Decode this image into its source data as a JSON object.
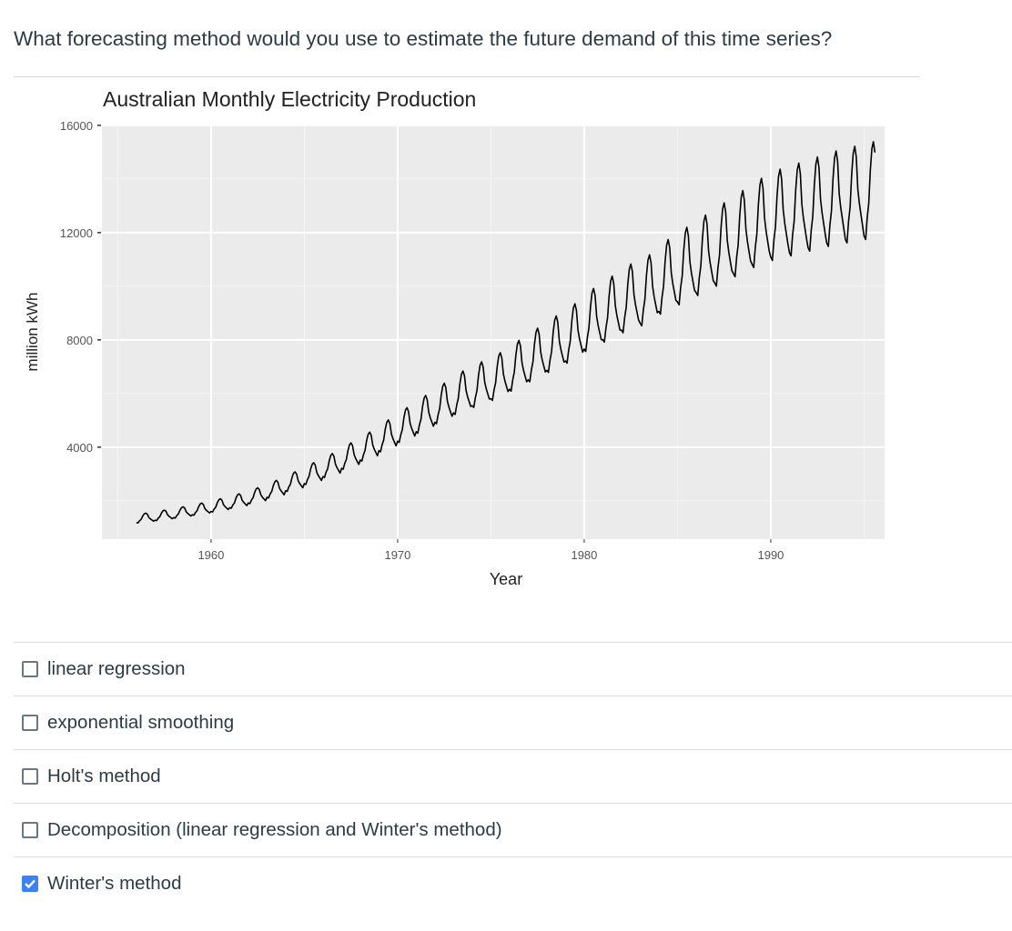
{
  "question": "What forecasting method would you use to estimate the future demand of this time series?",
  "answers": [
    {
      "label": "linear regression",
      "checked": false
    },
    {
      "label": "exponential smoothing",
      "checked": false
    },
    {
      "label": "Holt's method",
      "checked": false
    },
    {
      "label": "Decomposition (linear regression and Winter's method)",
      "checked": false
    },
    {
      "label": "Winter's method",
      "checked": true
    }
  ],
  "colors": {
    "checkbox_checked": "#3b82f6",
    "panel": "#ebebeb",
    "line": "#000000"
  },
  "chart_data": {
    "type": "line",
    "title": "Australian Monthly Electricity Production",
    "xlabel": "Year",
    "ylabel": "million kWh",
    "xticks": [
      "1960",
      "1970",
      "1980",
      "1990"
    ],
    "yticks": [
      "4000",
      "8000",
      "12000",
      "16000"
    ],
    "xlim": [
      1954.15,
      1996.1
    ],
    "ylim": [
      570,
      16030
    ],
    "grid": true,
    "start": "1956-01",
    "frequency": "monthly",
    "values": [
      1188,
      1175,
      1256,
      1310,
      1431,
      1512,
      1539,
      1499,
      1377,
      1323,
      1283,
      1242,
      1276,
      1262,
      1349,
      1407,
      1537,
      1624,
      1653,
      1610,
      1479,
      1421,
      1378,
      1334,
      1373,
      1357,
      1451,
      1513,
      1654,
      1747,
      1778,
      1732,
      1591,
      1529,
      1482,
      1435,
      1478,
      1462,
      1562,
      1630,
      1781,
      1882,
      1915,
      1865,
      1714,
      1646,
      1596,
      1546,
      1602,
      1583,
      1693,
      1765,
      1929,
      2038,
      2075,
      2020,
      1856,
      1784,
      1729,
      1674,
      1742,
      1723,
      1841,
      1921,
      2099,
      2218,
      2257,
      2198,
      2020,
      1940,
      1881,
      1822,
      1918,
      1897,
      2027,
      2115,
      2311,
      2442,
      2485,
      2420,
      2224,
      2136,
      2071,
      2006,
      2130,
      2105,
      2251,
      2347,
      2565,
      2710,
      2759,
      2686,
      2468,
      2372,
      2299,
      2226,
      2376,
      2349,
      2511,
      2619,
      2862,
      3024,
      3078,
      2997,
      2754,
      2646,
      2565,
      2484,
      2640,
      2610,
      2790,
      2910,
      3180,
      3360,
      3420,
      3330,
      3060,
      2940,
      2850,
      2760,
      2904,
      2871,
      3069,
      3201,
      3498,
      3696,
      3762,
      3663,
      3366,
      3234,
      3135,
      3036,
      3212,
      3176,
      3395,
      3541,
      3869,
      4088,
      4161,
      4052,
      3723,
      3577,
      3468,
      3358,
      3520,
      3480,
      3720,
      3880,
      4240,
      4480,
      4560,
      4440,
      4080,
      3920,
      3800,
      3680,
      3872,
      3828,
      4092,
      4268,
      4664,
      4928,
      5016,
      4884,
      4488,
      4312,
      4180,
      4048,
      4224,
      4176,
      4464,
      4656,
      5088,
      5376,
      5472,
      5328,
      4896,
      4704,
      4560,
      4416,
      4576,
      4524,
      4836,
      5044,
      5512,
      5824,
      5928,
      5772,
      5304,
      5096,
      4940,
      4784,
      4928,
      4872,
      5208,
      5432,
      5936,
      6272,
      6384,
      6216,
      5712,
      5488,
      5320,
      5152,
      5280,
      5220,
      5580,
      5820,
      6360,
      6720,
      6840,
      6660,
      6120,
      5880,
      5700,
      5520,
      5544,
      5481,
      5859,
      6111,
      6678,
      7056,
      7182,
      6993,
      6426,
      6174,
      5985,
      5796,
      5808,
      5742,
      6138,
      6402,
      6996,
      7392,
      7524,
      7326,
      6732,
      6468,
      6270,
      6072,
      6160,
      6090,
      6510,
      6790,
      7420,
      7840,
      7980,
      7770,
      7140,
      6860,
      6650,
      6440,
      6512,
      6438,
      6882,
      7178,
      7844,
      8288,
      8436,
      8214,
      7548,
      7252,
      7030,
      6808,
      6864,
      6786,
      7254,
      7566,
      8268,
      8736,
      8892,
      8658,
      7956,
      7644,
      7410,
      7176,
      7216,
      7134,
      7626,
      7954,
      8692,
      9184,
      9348,
      9102,
      8364,
      8036,
      7790,
      7544,
      7656,
      7569,
      8091,
      8439,
      9222,
      9744,
      9918,
      9657,
      8874,
      8526,
      8265,
      8004,
      8008,
      7917,
      8463,
      8827,
      9646,
      10192,
      10374,
      10101,
      9282,
      8918,
      8645,
      8372,
      8360,
      8265,
      8835,
      9215,
      10070,
      10640,
      10830,
      10545,
      9690,
      9310,
      9025,
      8740,
      8624,
      8526,
      9114,
      9506,
      10388,
      10976,
      11172,
      10878,
      9996,
      9604,
      9310,
      9016,
      9064,
      8961,
      9579,
      9991,
      10918,
      11536,
      11742,
      11433,
      10506,
      10094,
      9785,
      9476,
      9416,
      9309,
      9951,
      10379,
      11342,
      11984,
      12198,
      11877,
      10914,
      10486,
      10165,
      9844,
      9768,
      9657,
      10323,
      10767,
      11766,
      12432,
      12654,
      12321,
      11322,
      10878,
      10545,
      10212,
      10120,
      10005,
      10695,
      11155,
      12190,
      12880,
      13110,
      12765,
      11730,
      11270,
      10925,
      10580,
      10472,
      10353,
      11067,
      11543,
      12614,
      13328,
      13566,
      13209,
      12138,
      11662,
      11305,
      10948,
      10824,
      10701,
      11439,
      11931,
      13038,
      13776,
      14022,
      13653,
      12546,
      12054,
      11685,
      11316,
      11088,
      10962,
      11718,
      12222,
      13356,
      14112,
      14364,
      13986,
      12852,
      12348,
      11970,
      11592,
      11264,
      11136,
      11904,
      12416,
      13568,
      14336,
      14592,
      14208,
      13056,
      12544,
      12160,
      11776,
      11440,
      11310,
      12090,
      12610,
      13780,
      14560,
      14820,
      14430,
      13260,
      12740,
      12350,
      11960,
      11616,
      11484,
      12276,
      12804,
      13992,
      14784,
      15048,
      14652,
      13464,
      12936,
      12540,
      12144,
      11748,
      11615,
      12416,
      12950,
      14151,
      14952,
      15219,
      14819,
      13617,
      13083,
      12683,
      12282,
      11880,
      11745,
      12555,
      13095,
      14310,
      15120,
      15390,
      14985
    ]
  }
}
